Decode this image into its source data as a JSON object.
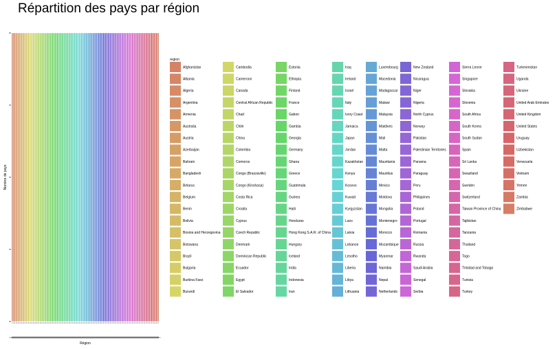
{
  "chart_data": {
    "type": "bar",
    "title": "Répartition des pays par région",
    "xlabel": "Région",
    "ylabel": "Nombre de pays",
    "legend_title": "region",
    "legend_position": "right",
    "grid": false,
    "categories": [
      "Afghanistan",
      "Albania",
      "Algeria",
      "Argentina",
      "Armenia",
      "Australia",
      "Austria",
      "Azerbaijan",
      "Bahrain",
      "Bangladesh",
      "Belarus",
      "Belgium",
      "Benin",
      "Bolivia",
      "Bosnia and Herzegovina",
      "Botswana",
      "Brazil",
      "Bulgaria",
      "Burkina Faso",
      "Burundi",
      "Cambodia",
      "Cameroon",
      "Canada",
      "Central African Republic",
      "Chad",
      "Chile",
      "China",
      "Colombia",
      "Comoros",
      "Congo (Brazzaville)",
      "Congo (Kinshasa)",
      "Costa Rica",
      "Croatia",
      "Cyprus",
      "Czech Republic",
      "Denmark",
      "Dominican Republic",
      "Ecuador",
      "Egypt",
      "El Salvador",
      "Estonia",
      "Ethiopia",
      "Finland",
      "France",
      "Gabon",
      "Gambia",
      "Georgia",
      "Germany",
      "Ghana",
      "Greece",
      "Guatemala",
      "Guinea",
      "Haiti",
      "Honduras",
      "Hong Kong S.A.R. of China",
      "Hungary",
      "Iceland",
      "India",
      "Indonesia",
      "Iran",
      "Iraq",
      "Ireland",
      "Israel",
      "Italy",
      "Ivory Coast",
      "Jamaica",
      "Japan",
      "Jordan",
      "Kazakhstan",
      "Kenya",
      "Kosovo",
      "Kuwait",
      "Kyrgyzstan",
      "Laos",
      "Latvia",
      "Lebanon",
      "Lesotho",
      "Liberia",
      "Libya",
      "Lithuania",
      "Luxembourg",
      "Macedonia",
      "Madagascar",
      "Malawi",
      "Malaysia",
      "Maldives",
      "Mali",
      "Malta",
      "Mauritania",
      "Mauritius",
      "Mexico",
      "Moldova",
      "Mongolia",
      "Montenegro",
      "Morocco",
      "Mozambique",
      "Myanmar",
      "Namibia",
      "Nepal",
      "Netherlands",
      "New Zealand",
      "Nicaragua",
      "Niger",
      "Nigeria",
      "North Cyprus",
      "Norway",
      "Pakistan",
      "Palestinian Territories",
      "Panama",
      "Paraguay",
      "Peru",
      "Philippines",
      "Poland",
      "Portugal",
      "Romania",
      "Russia",
      "Rwanda",
      "Saudi Arabia",
      "Senegal",
      "Serbia",
      "Sierra Leone",
      "Singapore",
      "Slovakia",
      "Slovenia",
      "South Africa",
      "South Korea",
      "South Sudan",
      "Spain",
      "Sri Lanka",
      "Swaziland",
      "Sweden",
      "Switzerland",
      "Taiwan Province of China",
      "Tajikistan",
      "Tanzania",
      "Thailand",
      "Togo",
      "Trinidad and Tobago",
      "Tunisia",
      "Turkey",
      "Turkmenistan",
      "Uganda",
      "Ukraine",
      "United Arab Emirates",
      "United Kingdom",
      "United States",
      "Uruguay",
      "Uzbekistan",
      "Venezuela",
      "Vietnam",
      "Yemen",
      "Zambia",
      "Zimbabwe"
    ],
    "values": "each category has a value of 1",
    "ylim": [
      0,
      1
    ]
  }
}
